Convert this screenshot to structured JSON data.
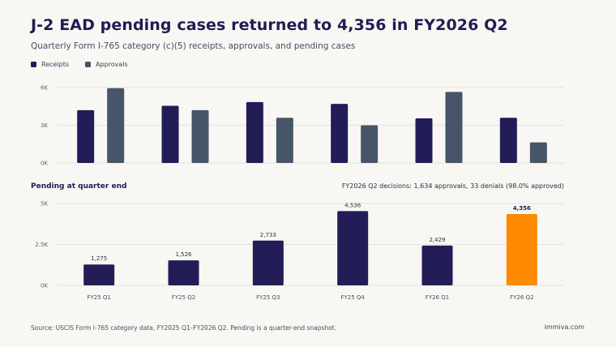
{
  "title": "J-2 EAD pending cases returned to 4,356 in FY2026 Q2",
  "subtitle": "Quarterly Form I-765 category (c)(5) receipts, approvals, and pending cases",
  "legend": [
    "Receipts",
    "Approvals"
  ],
  "section_label": "Pending at quarter end",
  "decisions_note": "FY2026 Q2 decisions: 1,634 approvals, 33 denials (98.0% approved)",
  "footer": "Source: USCIS Form I-765 category data, FY2025 Q1–FY2026 Q2. Pending is a quarter-end snapshot.",
  "brand": "immiva.com",
  "colors": {
    "receipts": "#221d57",
    "approvals": "#475569",
    "pending": "#221d57",
    "highlight": "#ff8a00",
    "grid": "#e3e2dc"
  },
  "chart_data": [
    {
      "type": "bar",
      "categories": [
        "FY25 Q1",
        "FY25 Q2",
        "FY25 Q3",
        "FY25 Q4",
        "FY26 Q1",
        "FY26 Q2"
      ],
      "series": [
        {
          "name": "Receipts",
          "values": [
            4200,
            4550,
            4850,
            4700,
            3550,
            3600
          ]
        },
        {
          "name": "Approvals",
          "values": [
            5950,
            4200,
            3600,
            3000,
            5650,
            1634
          ]
        }
      ],
      "yticks": [
        "0K",
        "3K",
        "6K"
      ],
      "ylim": [
        0,
        6000
      ],
      "legend_position": "top-left",
      "grid": true
    },
    {
      "type": "bar",
      "title": "Pending at quarter end",
      "categories": [
        "FY25 Q1",
        "FY25 Q2",
        "FY25 Q3",
        "FY25 Q4",
        "FY26 Q1",
        "FY26 Q2"
      ],
      "series": [
        {
          "values": [
            1275,
            1526,
            2733,
            4536,
            2429,
            4356
          ]
        }
      ],
      "data_labels": [
        "1,275",
        "1,526",
        "2,733",
        "4,536",
        "2,429",
        "4,356"
      ],
      "highlight_index": 5,
      "yticks": [
        "0K",
        "2.5K",
        "5K"
      ],
      "ylim": [
        0,
        5000
      ],
      "grid": true
    }
  ]
}
